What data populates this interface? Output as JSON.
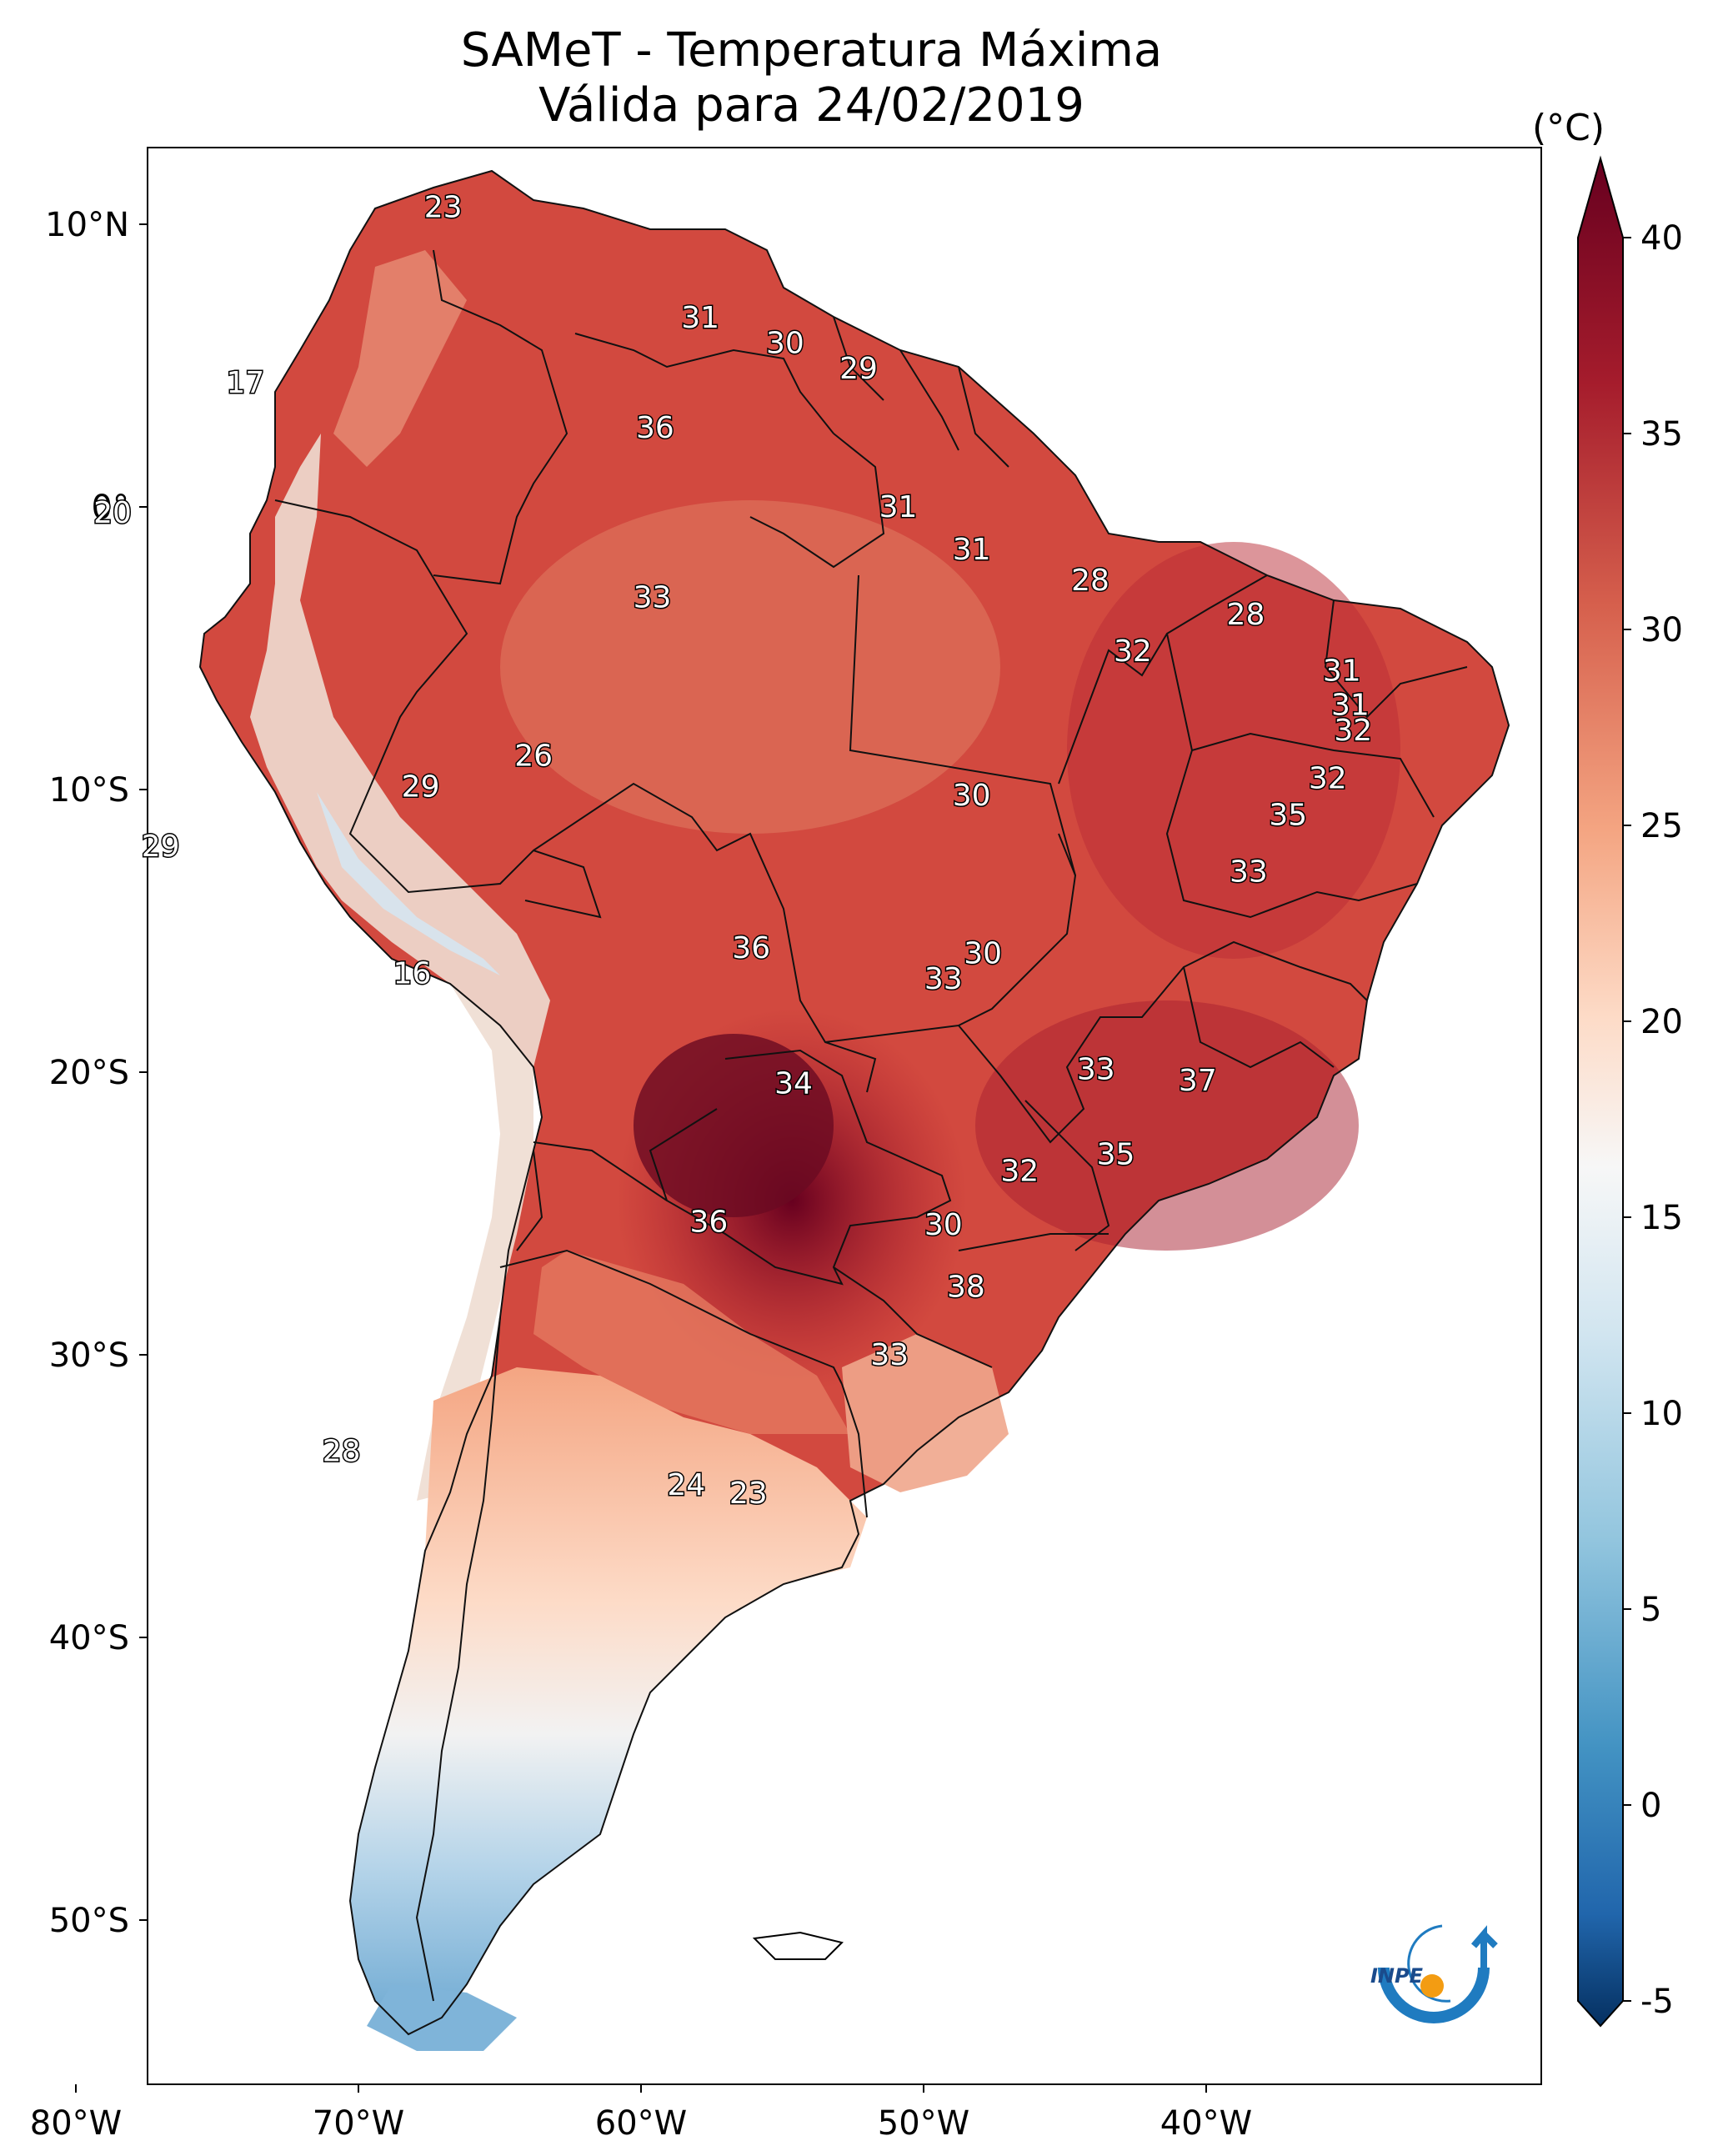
{
  "title_line1": "SAMeT - Temperatura Máxima",
  "title_line2": "Válida para 24/02/2019",
  "colorbar": {
    "unit": "(°C)",
    "ticks": [
      "40",
      "35",
      "30",
      "25",
      "20",
      "15",
      "10",
      "5",
      "0",
      "-5"
    ],
    "range": [
      -5,
      40
    ],
    "colormap": "RdBu_r",
    "colors": {
      "max": "#67001f",
      "hot": "#c53a3d",
      "warm": "#f4a582",
      "neutral": "#f7f7f7",
      "cool": "#92c5de",
      "cold": "#053061"
    }
  },
  "axes": {
    "lat_ticks": [
      "10°N",
      "0°",
      "10°S",
      "20°S",
      "30°S",
      "40°S",
      "50°S"
    ],
    "lon_ticks": [
      "80°W",
      "70°W",
      "60°W",
      "50°W",
      "40°W"
    ]
  },
  "logo": {
    "text": "INPE",
    "icon": "inpe-logo-icon"
  },
  "station_labels": [
    {
      "text": "23",
      "lon": -67.0,
      "lat": 10.6
    },
    {
      "text": "17",
      "lon": -74.0,
      "lat": 4.4
    },
    {
      "text": "31",
      "lon": -57.9,
      "lat": 6.7
    },
    {
      "text": "30",
      "lon": -54.9,
      "lat": 5.8
    },
    {
      "text": "29",
      "lon": -52.3,
      "lat": 4.9
    },
    {
      "text": "36",
      "lon": -59.5,
      "lat": 2.8
    },
    {
      "text": "20",
      "lon": -78.7,
      "lat": -0.2
    },
    {
      "text": "31",
      "lon": -50.9,
      "lat": 0.0
    },
    {
      "text": "31",
      "lon": -48.3,
      "lat": -1.5
    },
    {
      "text": "33",
      "lon": -59.6,
      "lat": -3.2
    },
    {
      "text": "28",
      "lon": -44.1,
      "lat": -2.6
    },
    {
      "text": "28",
      "lon": -38.6,
      "lat": -3.8
    },
    {
      "text": "32",
      "lon": -42.6,
      "lat": -5.1
    },
    {
      "text": "31",
      "lon": -35.2,
      "lat": -5.8
    },
    {
      "text": "31",
      "lon": -34.9,
      "lat": -7.0
    },
    {
      "text": "32",
      "lon": -34.8,
      "lat": -7.9
    },
    {
      "text": "26",
      "lon": -63.8,
      "lat": -8.8
    },
    {
      "text": "29",
      "lon": -67.8,
      "lat": -9.9
    },
    {
      "text": "30",
      "lon": -48.3,
      "lat": -10.2
    },
    {
      "text": "32",
      "lon": -35.7,
      "lat": -9.6
    },
    {
      "text": "35",
      "lon": -37.1,
      "lat": -10.9
    },
    {
      "text": "29",
      "lon": -77.0,
      "lat": -12.0
    },
    {
      "text": "33",
      "lon": -38.5,
      "lat": -12.9
    },
    {
      "text": "36",
      "lon": -56.1,
      "lat": -15.6
    },
    {
      "text": "30",
      "lon": -47.9,
      "lat": -15.8
    },
    {
      "text": "16",
      "lon": -68.1,
      "lat": -16.5
    },
    {
      "text": "33",
      "lon": -49.3,
      "lat": -16.7
    },
    {
      "text": "33",
      "lon": -43.9,
      "lat": -19.9
    },
    {
      "text": "37",
      "lon": -40.3,
      "lat": -20.3
    },
    {
      "text": "34",
      "lon": -54.6,
      "lat": -20.4
    },
    {
      "text": "35",
      "lon": -43.2,
      "lat": -22.9
    },
    {
      "text": "32",
      "lon": -46.6,
      "lat": -23.5
    },
    {
      "text": "36",
      "lon": -57.6,
      "lat": -25.3
    },
    {
      "text": "30",
      "lon": -49.3,
      "lat": -25.4
    },
    {
      "text": "38",
      "lon": -48.5,
      "lat": -27.6
    },
    {
      "text": "33",
      "lon": -51.2,
      "lat": -30.0
    },
    {
      "text": "28",
      "lon": -70.6,
      "lat": -33.4
    },
    {
      "text": "24",
      "lon": -58.4,
      "lat": -34.6
    },
    {
      "text": "23",
      "lon": -56.2,
      "lat": -34.9
    }
  ]
}
